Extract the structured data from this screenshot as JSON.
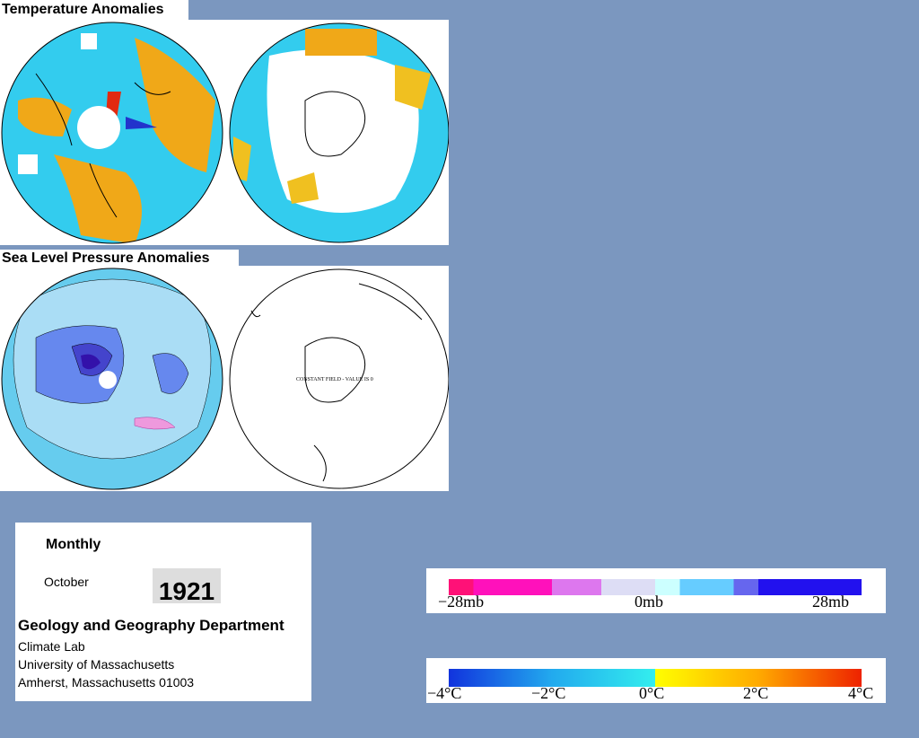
{
  "panels": [
    {
      "title": "Temperature Anomalies"
    },
    {
      "title": "Sea Level Pressure Anomalies",
      "note": "CONSTANT FIELD - VALUE IS 0"
    }
  ],
  "info": {
    "period": "Monthly",
    "month": "October",
    "year": "1921",
    "department": "Geology and Geography Department",
    "lines": [
      "Climate Lab",
      "University of Massachusetts",
      "Amherst, Massachusetts 01003"
    ]
  },
  "legends": {
    "pressure": [
      "−28mb",
      "0mb",
      "28mb"
    ],
    "temperature": [
      "−4°C",
      "−2°C",
      "0°C",
      "2°C",
      "4°C"
    ]
  }
}
